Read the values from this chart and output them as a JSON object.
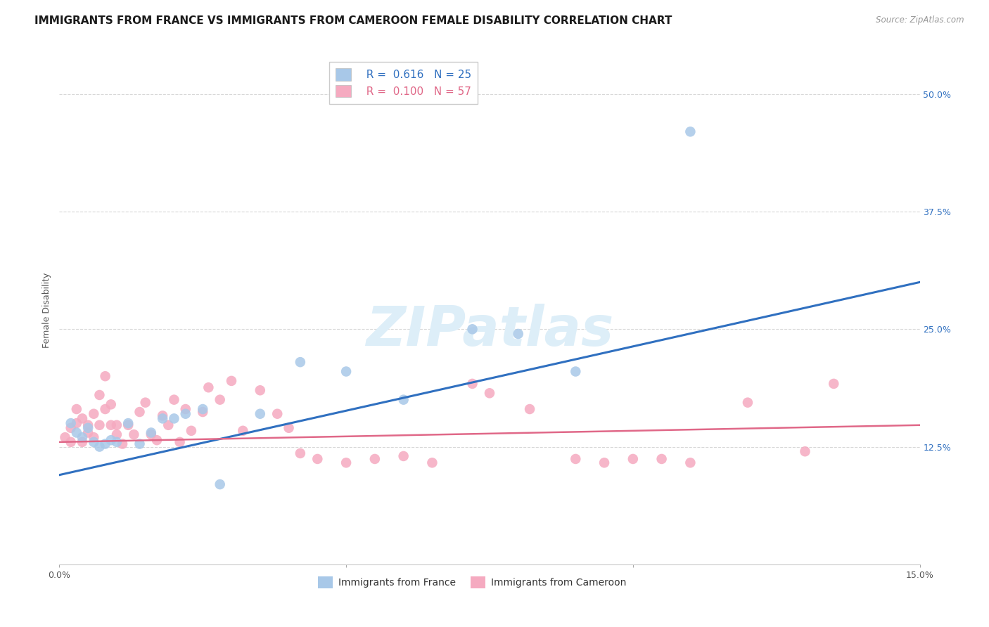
{
  "title": "IMMIGRANTS FROM FRANCE VS IMMIGRANTS FROM CAMEROON FEMALE DISABILITY CORRELATION CHART",
  "source": "Source: ZipAtlas.com",
  "ylabel": "Female Disability",
  "xlim": [
    0.0,
    0.15
  ],
  "ylim": [
    0.0,
    0.54
  ],
  "yticks": [
    0.125,
    0.25,
    0.375,
    0.5
  ],
  "ytick_labels": [
    "12.5%",
    "25.0%",
    "37.5%",
    "50.0%"
  ],
  "xticks": [
    0.0,
    0.05,
    0.1,
    0.15
  ],
  "xtick_labels": [
    "0.0%",
    "",
    "",
    "15.0%"
  ],
  "france_R": 0.616,
  "france_N": 25,
  "cameroon_R": 0.1,
  "cameroon_N": 57,
  "france_color": "#a8c8e8",
  "cameroon_color": "#f5aac0",
  "france_line_color": "#3070c0",
  "cameroon_line_color": "#e06888",
  "france_x": [
    0.002,
    0.003,
    0.004,
    0.005,
    0.006,
    0.007,
    0.008,
    0.009,
    0.01,
    0.012,
    0.014,
    0.016,
    0.018,
    0.02,
    0.022,
    0.025,
    0.028,
    0.035,
    0.042,
    0.05,
    0.06,
    0.072,
    0.08,
    0.09,
    0.11
  ],
  "france_y": [
    0.15,
    0.14,
    0.135,
    0.145,
    0.13,
    0.125,
    0.128,
    0.132,
    0.13,
    0.15,
    0.128,
    0.14,
    0.155,
    0.155,
    0.16,
    0.165,
    0.085,
    0.16,
    0.215,
    0.205,
    0.175,
    0.25,
    0.245,
    0.205,
    0.46
  ],
  "cameroon_x": [
    0.001,
    0.002,
    0.002,
    0.003,
    0.003,
    0.004,
    0.004,
    0.005,
    0.005,
    0.006,
    0.006,
    0.007,
    0.007,
    0.008,
    0.008,
    0.009,
    0.009,
    0.01,
    0.01,
    0.011,
    0.012,
    0.013,
    0.014,
    0.015,
    0.016,
    0.017,
    0.018,
    0.019,
    0.02,
    0.021,
    0.022,
    0.023,
    0.025,
    0.026,
    0.028,
    0.03,
    0.032,
    0.035,
    0.038,
    0.04,
    0.042,
    0.045,
    0.05,
    0.055,
    0.06,
    0.065,
    0.072,
    0.075,
    0.082,
    0.09,
    0.095,
    0.1,
    0.105,
    0.11,
    0.12,
    0.13,
    0.135
  ],
  "cameroon_y": [
    0.135,
    0.145,
    0.13,
    0.15,
    0.165,
    0.155,
    0.13,
    0.14,
    0.148,
    0.135,
    0.16,
    0.148,
    0.18,
    0.165,
    0.2,
    0.17,
    0.148,
    0.148,
    0.138,
    0.128,
    0.148,
    0.138,
    0.162,
    0.172,
    0.138,
    0.132,
    0.158,
    0.148,
    0.175,
    0.13,
    0.165,
    0.142,
    0.162,
    0.188,
    0.175,
    0.195,
    0.142,
    0.185,
    0.16,
    0.145,
    0.118,
    0.112,
    0.108,
    0.112,
    0.115,
    0.108,
    0.192,
    0.182,
    0.165,
    0.112,
    0.108,
    0.112,
    0.112,
    0.108,
    0.172,
    0.12,
    0.192
  ],
  "background_color": "#ffffff",
  "grid_color": "#d8d8d8",
  "watermark_text": "ZIPatlas",
  "watermark_color": "#ddeef8",
  "title_fontsize": 11,
  "axis_label_fontsize": 9,
  "tick_fontsize": 9,
  "legend_fontsize": 11,
  "france_trendline_x0": 0.0,
  "france_trendline_y0": 0.095,
  "france_trendline_x1": 0.15,
  "france_trendline_y1": 0.3,
  "cameroon_trendline_x0": 0.0,
  "cameroon_trendline_y0": 0.13,
  "cameroon_trendline_x1": 0.15,
  "cameroon_trendline_y1": 0.148
}
